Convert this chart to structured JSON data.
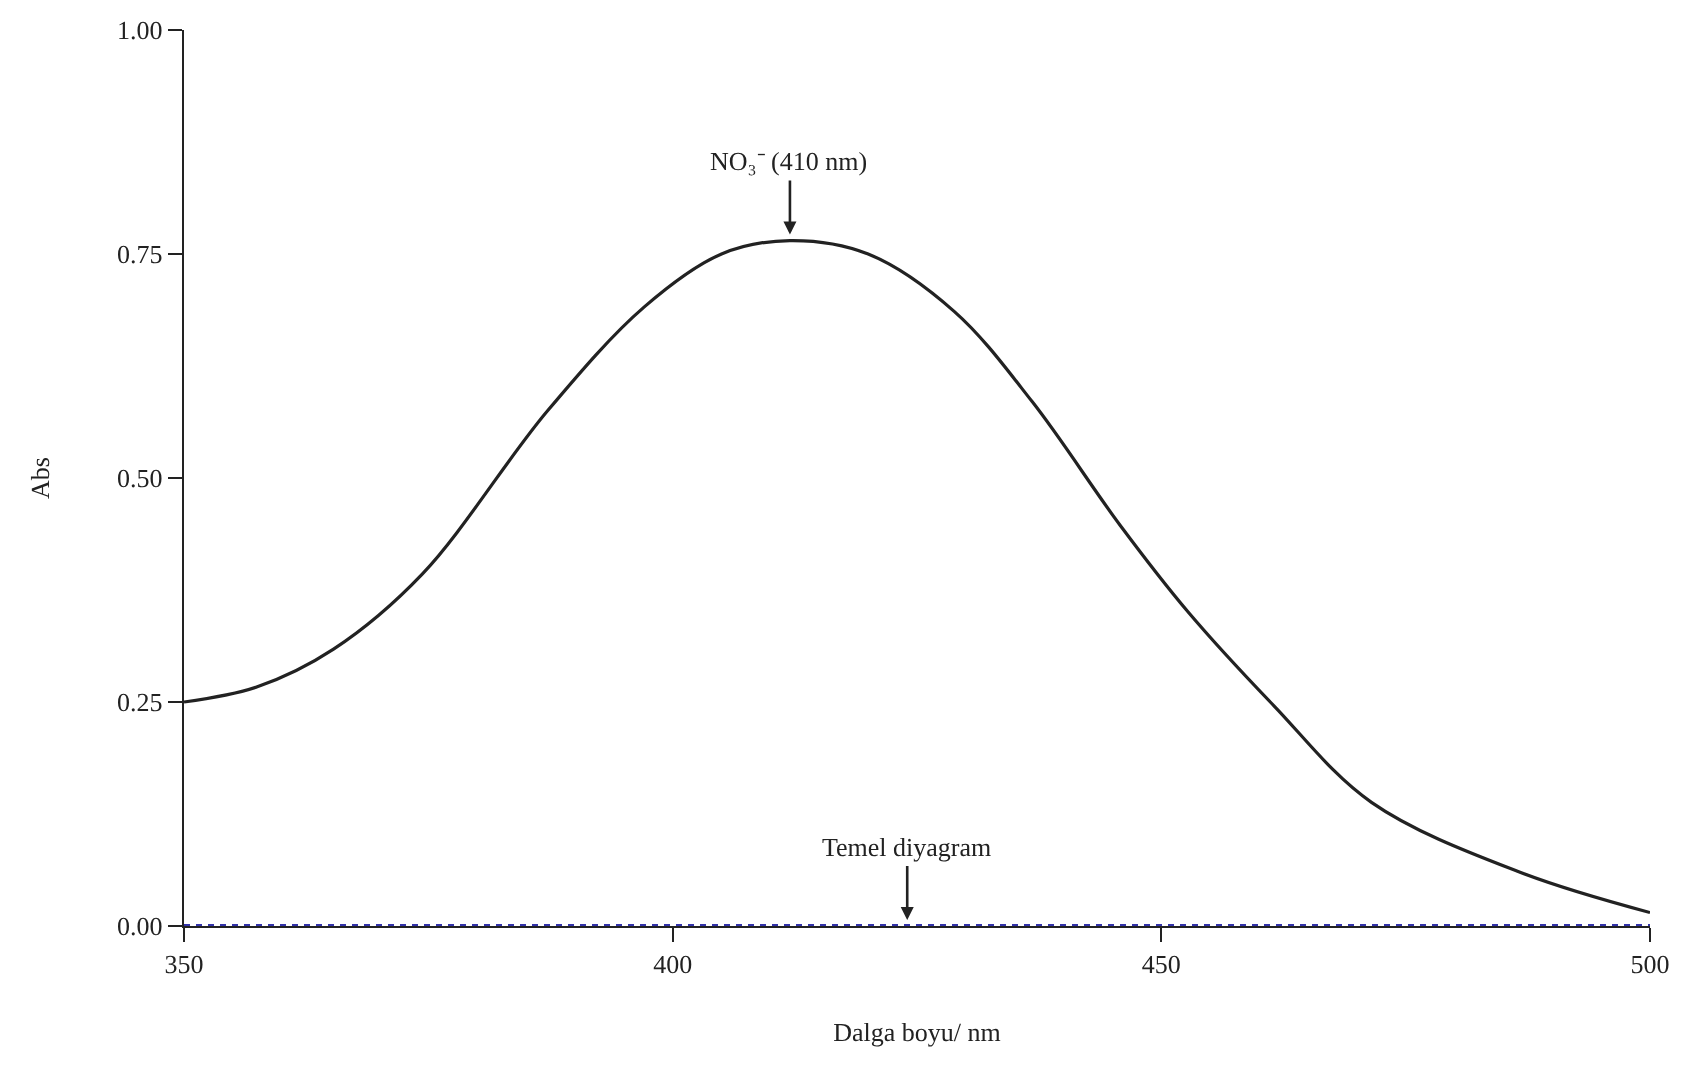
{
  "chart_data": {
    "type": "line",
    "xlabel": "Dalga boyu/ nm",
    "ylabel": "Abs",
    "xlim": [
      350,
      500
    ],
    "ylim": [
      0,
      1.0
    ],
    "xticks": [
      350,
      400,
      450,
      500
    ],
    "yticks": [
      {
        "value": 0,
        "label": "0.00"
      },
      {
        "value": 0.25,
        "label": "0.25"
      },
      {
        "value": 0.5,
        "label": "0.50"
      },
      {
        "value": 0.75,
        "label": "0.75"
      },
      {
        "value": 1.0,
        "label": "1.00"
      }
    ],
    "marker": "none",
    "series": [
      {
        "color": "#222222",
        "line_style": "solid",
        "x": [
          350,
          357.5,
          365.3,
          374.4,
          387.2,
          397.1,
          405,
          412,
          420,
          428.8,
          436.8,
          445.8,
          452.7,
          461.5,
          471.5,
          486.7,
          500
        ],
        "values": [
          0.25,
          0.267,
          0.309,
          0.393,
          0.575,
          0.691,
          0.75,
          0.765,
          0.75,
          0.686,
          0.585,
          0.447,
          0.351,
          0.246,
          0.138,
          0.06,
          0.015
        ]
      },
      {
        "color": "#3333aa",
        "line_style": "dotted",
        "x": [
          350,
          500
        ],
        "values": [
          0,
          0
        ]
      }
    ],
    "annotations": [
      {
        "text": "NO₃⁻ (410 nm)",
        "x": 412,
        "y": 0.765
      },
      {
        "text": "Temel diyagram",
        "x": 424,
        "y": 0
      }
    ]
  }
}
